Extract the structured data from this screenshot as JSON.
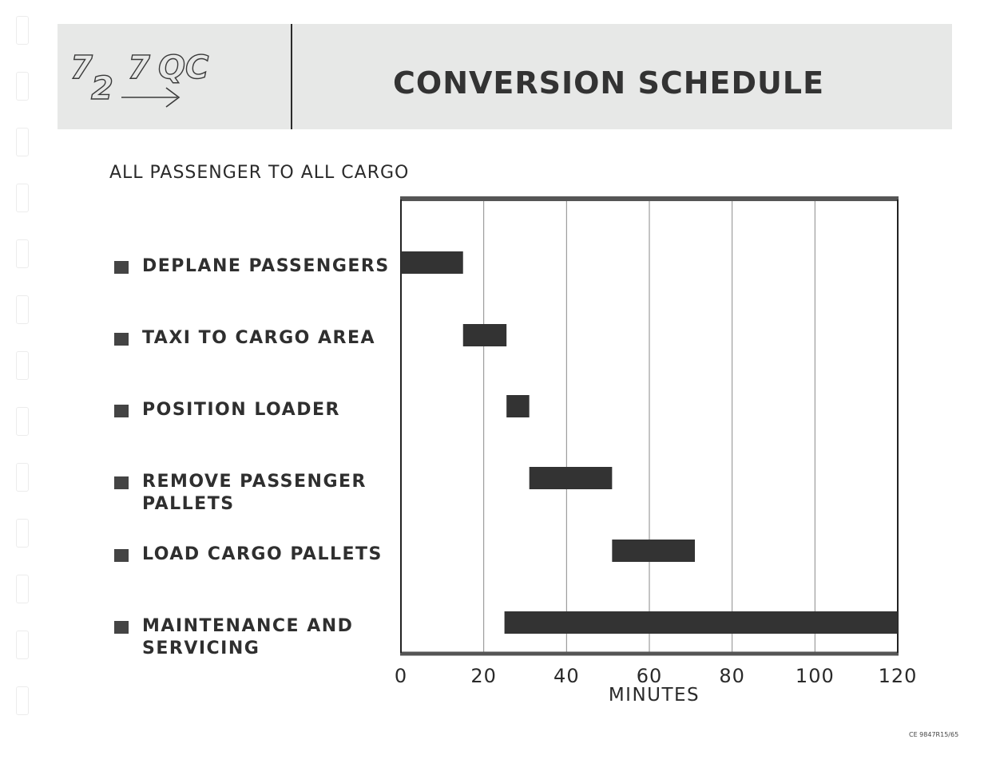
{
  "header": {
    "logo_text": "727QC",
    "title": "CONVERSION  SCHEDULE"
  },
  "subtitle": "ALL PASSENGER TO ALL CARGO",
  "footer_code": "CE 9847R15/65",
  "chart_data": {
    "type": "gantt",
    "xlabel": "MINUTES",
    "xlim": [
      0,
      120
    ],
    "xticks": [
      0,
      20,
      40,
      60,
      80,
      100,
      120
    ],
    "grid": true,
    "tasks": [
      {
        "name": "DEPLANE PASSENGERS",
        "start": 0,
        "end": 15
      },
      {
        "name": "TAXI TO CARGO AREA",
        "start": 15,
        "end": 25.5
      },
      {
        "name": "POSITION  LOADER",
        "start": 25.5,
        "end": 31
      },
      {
        "name": "REMOVE  PASSENGER PALLETS",
        "start": 31,
        "end": 51
      },
      {
        "name": "LOAD CARGO PALLETS",
        "start": 51,
        "end": 71
      },
      {
        "name": "MAINTENANCE AND SERVICING",
        "start": 25,
        "end": 120
      }
    ],
    "bar_color": "#333333"
  }
}
